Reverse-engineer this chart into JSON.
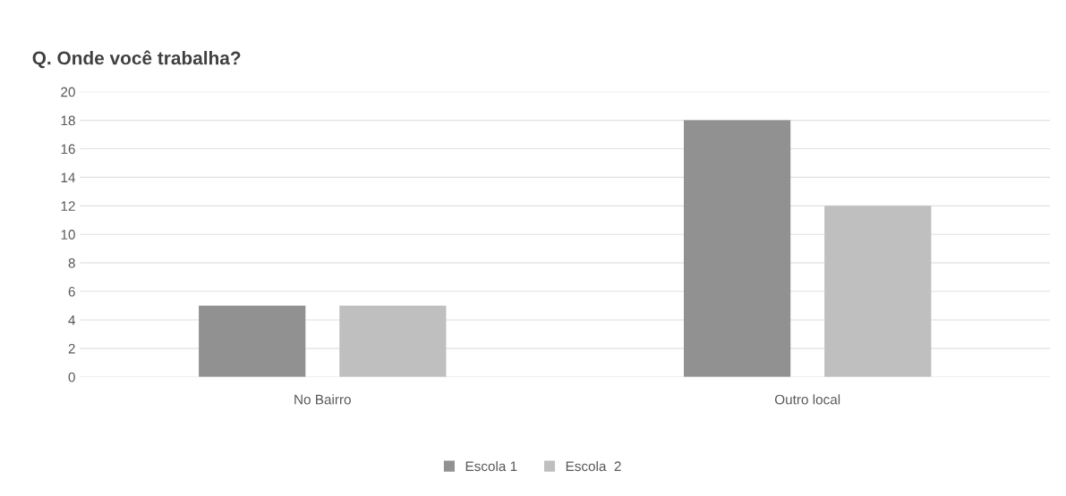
{
  "chart_data": {
    "type": "bar",
    "title": "Q. Onde você trabalha?",
    "categories": [
      "No Bairro",
      "Outro local"
    ],
    "series": [
      {
        "name": "Escola 1",
        "color": "#919191",
        "values": [
          5,
          18
        ]
      },
      {
        "name": "Escola  2",
        "color": "#bfbfbf",
        "values": [
          5,
          12
        ]
      }
    ],
    "ylim": [
      0,
      20
    ],
    "yticks": [
      0,
      2,
      4,
      6,
      8,
      10,
      12,
      14,
      16,
      18,
      20
    ],
    "grid": "y",
    "legend": "bottom"
  }
}
